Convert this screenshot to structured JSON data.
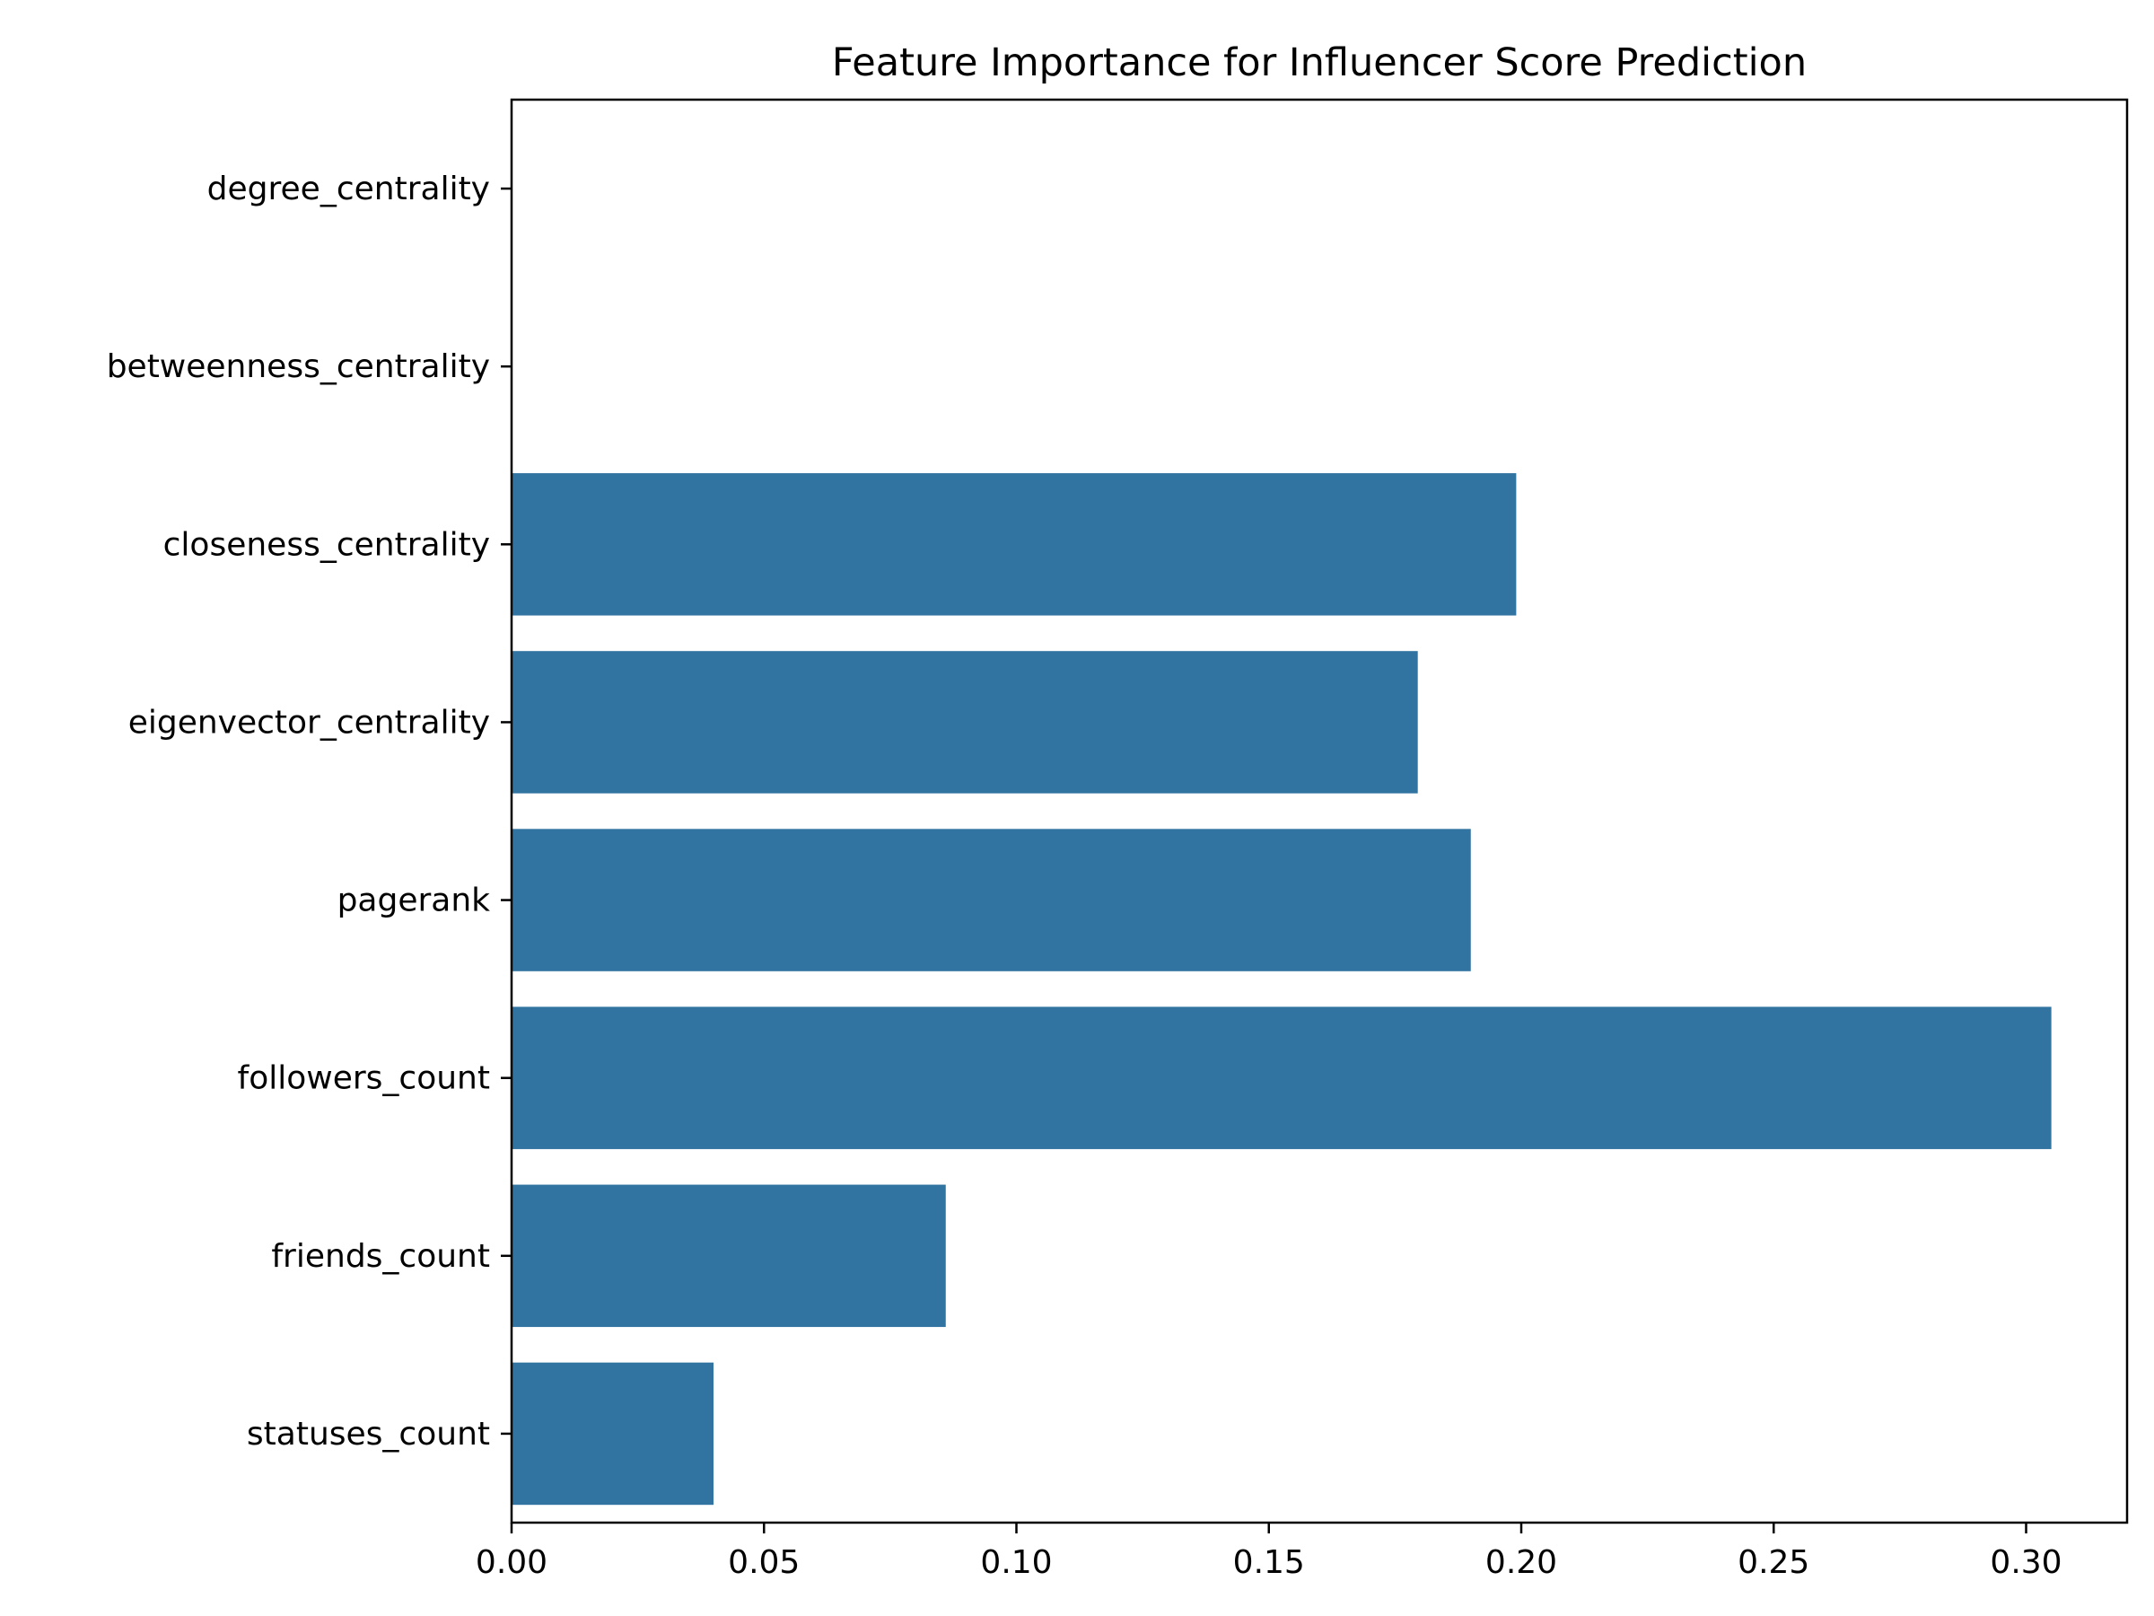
{
  "chart_data": {
    "type": "bar",
    "orientation": "horizontal",
    "title": "Feature Importance for Influencer Score Prediction",
    "xlabel": "",
    "ylabel": "",
    "categories": [
      "degree_centrality",
      "betweenness_centrality",
      "closeness_centrality",
      "eigenvector_centrality",
      "pagerank",
      "followers_count",
      "friends_count",
      "statuses_count"
    ],
    "values": [
      0.0,
      0.0,
      0.199,
      0.1795,
      0.19,
      0.305,
      0.086,
      0.04
    ],
    "xlim": [
      0,
      0.32
    ],
    "xticks": [
      0.0,
      0.05,
      0.1,
      0.15,
      0.2,
      0.25,
      0.3
    ],
    "xtick_labels": [
      "0.00",
      "0.05",
      "0.10",
      "0.15",
      "0.20",
      "0.25",
      "0.30"
    ],
    "grid": false,
    "bar_color": "#3274a1"
  }
}
